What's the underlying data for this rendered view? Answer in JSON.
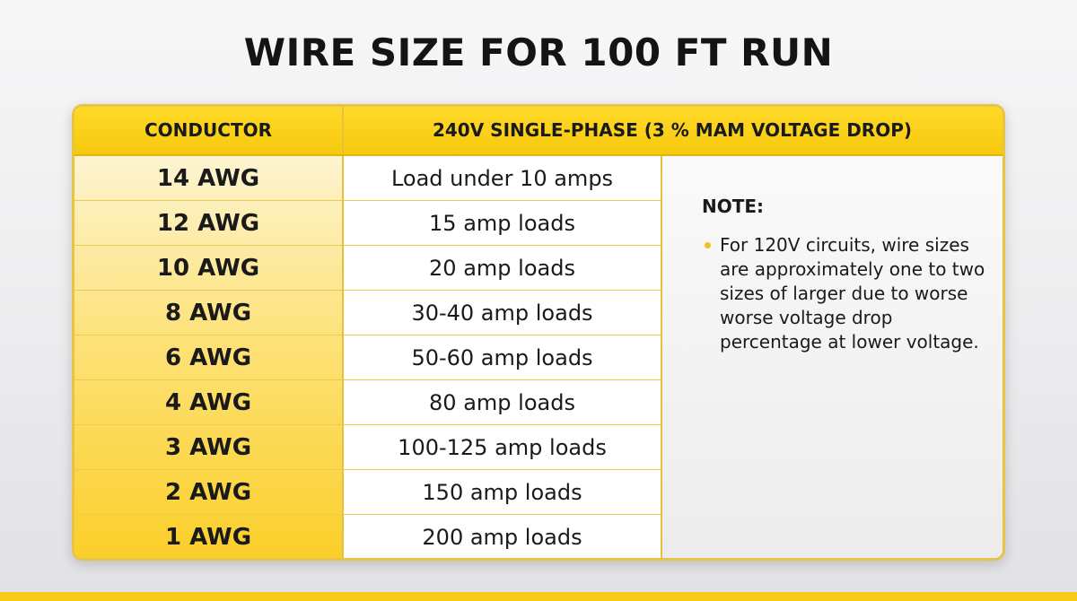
{
  "title": "WIRE SIZE FOR 100 FT RUN",
  "table": {
    "headers": {
      "conductor": "CONDUCTOR",
      "voltage": "240V SINGLE-PHASE (3 % MAM VOLTAGE DROP)"
    },
    "rows": [
      {
        "conductor": "14 AWG",
        "load": "Load under 10 amps"
      },
      {
        "conductor": "12 AWG",
        "load": "15 amp loads"
      },
      {
        "conductor": "10 AWG",
        "load": "20 amp loads"
      },
      {
        "conductor": "8 AWG",
        "load": "30-40 amp loads"
      },
      {
        "conductor": "6 AWG",
        "load": "50-60 amp loads"
      },
      {
        "conductor": "4 AWG",
        "load": "80 amp loads"
      },
      {
        "conductor": "3 AWG",
        "load": "100-125 amp loads"
      },
      {
        "conductor": "2 AWG",
        "load": "150 amp loads"
      },
      {
        "conductor": "1 AWG",
        "load": "200 amp loads"
      }
    ]
  },
  "note": {
    "title": "NOTE:",
    "text": "For 120V circuits, wire sizes are approximately one to two sizes of larger due to worse worse voltage drop percentage at lower voltage."
  },
  "colors": {
    "accent": "#f6c90e",
    "border": "#e8c446",
    "text": "#1a1a1a"
  }
}
